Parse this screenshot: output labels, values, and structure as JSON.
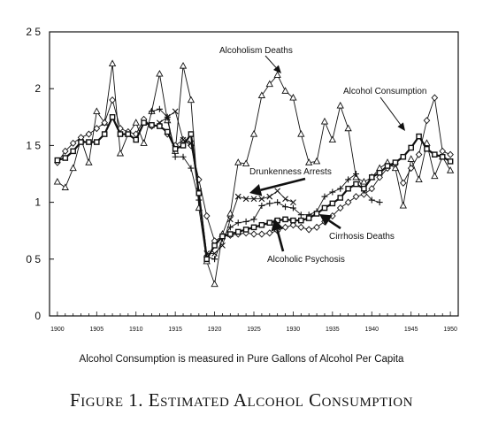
{
  "caption": "Alcohol Consumption is measured in Pure Gallons of Alcohol Per Capita",
  "figure_title": "Figure 1. Estimated Alcohol Consumption",
  "chart_data": {
    "type": "line",
    "title": "",
    "xlabel": "",
    "ylabel": "",
    "xlim": [
      1899,
      1951
    ],
    "ylim": [
      0,
      2.5
    ],
    "grid": false,
    "legend": "none",
    "x_ticks": [
      1900,
      1905,
      1910,
      1915,
      1920,
      1925,
      1930,
      1935,
      1940,
      1945,
      1950
    ],
    "y_ticks": [
      0,
      0.5,
      1,
      1.5,
      2,
      2.5
    ],
    "y_tick_labels": [
      "0",
      "0 5",
      "1",
      "1 5",
      "2",
      "2 5"
    ],
    "annotations": [
      {
        "text": "Alcoholism Deaths",
        "series": "Alcoholism Deaths",
        "at": [
          1928,
          2.1
        ]
      },
      {
        "text": "Alcohol Consumption",
        "series": "Alcohol Consumption",
        "at": [
          1946,
          1.58
        ]
      },
      {
        "text": "Drunkenness Arrests",
        "series": "Drunkenness Arrests",
        "at": [
          1924,
          1.06
        ]
      },
      {
        "text": "Cirrhosis Deaths",
        "series": "Cirrhosis Deaths",
        "at": [
          1935,
          0.88
        ]
      },
      {
        "text": "Alcoholic Psychosis",
        "series": "Alcoholic Psychosis",
        "at": [
          1928,
          0.98
        ]
      }
    ],
    "series": [
      {
        "name": "Alcohol Consumption",
        "marker": "square",
        "bold": true,
        "x": [
          1900,
          1901,
          1902,
          1903,
          1904,
          1905,
          1906,
          1907,
          1908,
          1909,
          1910,
          1911,
          1912,
          1913,
          1914,
          1915,
          1916,
          1917,
          1918,
          1919,
          1920,
          1921,
          1922,
          1923,
          1924,
          1925,
          1926,
          1927,
          1928,
          1929,
          1930,
          1931,
          1932,
          1933,
          1934,
          1935,
          1936,
          1937,
          1938,
          1939,
          1940,
          1941,
          1942,
          1943,
          1944,
          1945,
          1946,
          1947,
          1948,
          1949,
          1950
        ],
        "y": [
          1.37,
          1.39,
          1.45,
          1.53,
          1.53,
          1.53,
          1.6,
          1.75,
          1.6,
          1.6,
          1.55,
          1.7,
          1.68,
          1.67,
          1.62,
          1.47,
          1.5,
          1.6,
          1.08,
          0.5,
          0.62,
          0.7,
          0.72,
          0.74,
          0.76,
          0.78,
          0.8,
          0.82,
          0.84,
          0.85,
          0.84,
          0.84,
          0.86,
          0.9,
          0.95,
          0.99,
          1.04,
          1.12,
          1.16,
          1.12,
          1.22,
          1.26,
          1.32,
          1.35,
          1.4,
          1.48,
          1.58,
          1.47,
          1.42,
          1.4,
          1.36
        ]
      },
      {
        "name": "Alcoholism Deaths",
        "marker": "triangle",
        "x": [
          1900,
          1901,
          1902,
          1903,
          1904,
          1905,
          1906,
          1907,
          1908,
          1909,
          1910,
          1911,
          1912,
          1913,
          1914,
          1915,
          1916,
          1917,
          1918,
          1919,
          1920,
          1921,
          1922,
          1923,
          1924,
          1925,
          1926,
          1927,
          1928,
          1929,
          1930,
          1931,
          1932,
          1933,
          1934,
          1935,
          1936,
          1937,
          1938,
          1939,
          1940,
          1941,
          1942,
          1943,
          1944,
          1945,
          1946,
          1947,
          1948,
          1949,
          1950
        ],
        "y": [
          1.18,
          1.13,
          1.3,
          1.56,
          1.35,
          1.8,
          1.7,
          2.22,
          1.43,
          1.6,
          1.7,
          1.52,
          1.8,
          2.13,
          1.72,
          1.45,
          2.2,
          1.9,
          0.95,
          0.48,
          0.28,
          0.72,
          0.9,
          1.35,
          1.34,
          1.6,
          1.94,
          2.04,
          2.12,
          1.98,
          1.92,
          1.6,
          1.35,
          1.36,
          1.71,
          1.55,
          1.85,
          1.65,
          1.22,
          1.18,
          1.22,
          1.3,
          1.35,
          1.3,
          0.97,
          1.38,
          1.2,
          1.52,
          1.23,
          1.4,
          1.28
        ]
      },
      {
        "name": "Cirrhosis Deaths",
        "marker": "diamond",
        "x": [
          1900,
          1901,
          1902,
          1903,
          1904,
          1905,
          1906,
          1907,
          1908,
          1909,
          1910,
          1911,
          1912,
          1913,
          1914,
          1915,
          1916,
          1917,
          1918,
          1919,
          1920,
          1921,
          1922,
          1923,
          1924,
          1925,
          1926,
          1927,
          1928,
          1929,
          1930,
          1931,
          1932,
          1933,
          1934,
          1935,
          1936,
          1937,
          1938,
          1939,
          1940,
          1941,
          1942,
          1943,
          1944,
          1945,
          1946,
          1947,
          1948,
          1949,
          1950
        ],
        "y": [
          1.35,
          1.45,
          1.52,
          1.57,
          1.6,
          1.65,
          1.7,
          1.9,
          1.65,
          1.62,
          1.6,
          1.73,
          1.67,
          1.68,
          1.6,
          1.5,
          1.55,
          1.5,
          1.2,
          0.88,
          0.66,
          0.7,
          0.71,
          0.72,
          0.73,
          0.72,
          0.72,
          0.73,
          0.75,
          0.78,
          0.8,
          0.78,
          0.76,
          0.78,
          0.83,
          0.88,
          0.95,
          1.0,
          1.05,
          1.07,
          1.12,
          1.22,
          1.3,
          1.34,
          1.17,
          1.3,
          1.42,
          1.72,
          1.92,
          1.45,
          1.42
        ]
      },
      {
        "name": "Drunkenness Arrests",
        "marker": "x",
        "x": [
          1913,
          1914,
          1915,
          1916,
          1917,
          1918,
          1919,
          1920,
          1921,
          1922,
          1923,
          1924,
          1925,
          1926,
          1927,
          1928,
          1929,
          1930
        ],
        "y": [
          1.7,
          1.75,
          1.8,
          1.55,
          1.52,
          1.1,
          0.55,
          0.55,
          0.62,
          0.85,
          1.05,
          1.03,
          1.03,
          1.03,
          1.05,
          1.1,
          1.03,
          1.0
        ]
      },
      {
        "name": "Alcoholic Psychosis",
        "marker": "plus",
        "x": [
          1912,
          1913,
          1914,
          1915,
          1916,
          1917,
          1918,
          1919,
          1920,
          1921,
          1922,
          1923,
          1924,
          1925,
          1926,
          1927,
          1928,
          1929,
          1930,
          1931,
          1932,
          1933,
          1934,
          1935,
          1936,
          1937,
          1938,
          1939,
          1940,
          1941
        ],
        "y": [
          1.8,
          1.82,
          1.75,
          1.4,
          1.4,
          1.3,
          1.02,
          0.52,
          0.5,
          0.68,
          0.78,
          0.82,
          0.83,
          0.85,
          0.97,
          0.99,
          1.0,
          0.96,
          0.95,
          0.89,
          0.89,
          0.92,
          1.05,
          1.09,
          1.12,
          1.2,
          1.25,
          1.1,
          1.02,
          1.0
        ]
      }
    ]
  }
}
